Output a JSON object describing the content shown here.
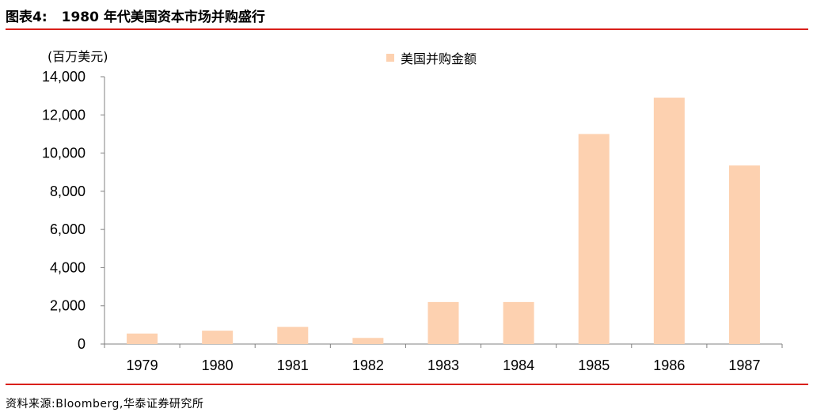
{
  "header": {
    "figure_label": "图表4:",
    "title": "1980 年代美国资本市场并购盛行"
  },
  "footer": {
    "source": "资料来源:Bloomberg,华泰证券研究所"
  },
  "colors": {
    "accent_rule": "#d9201a",
    "bar": "#fdd1b0",
    "axis": "#808080"
  },
  "chart_data": {
    "type": "bar",
    "unit_label": "(百万美元)",
    "categories": [
      "1979",
      "1980",
      "1981",
      "1982",
      "1983",
      "1984",
      "1985",
      "1986",
      "1987"
    ],
    "series": [
      {
        "name": "美国并购金额",
        "values": [
          550,
          700,
          900,
          320,
          2200,
          2200,
          11000,
          12900,
          9350
        ]
      }
    ],
    "ylim": [
      0,
      14000
    ],
    "yticks": [
      0,
      2000,
      4000,
      6000,
      8000,
      10000,
      12000,
      14000
    ],
    "ytick_labels": [
      "0",
      "2,000",
      "4,000",
      "6,000",
      "8,000",
      "10,000",
      "12,000",
      "14,000"
    ],
    "legend_position": "top-center",
    "grid": false
  }
}
